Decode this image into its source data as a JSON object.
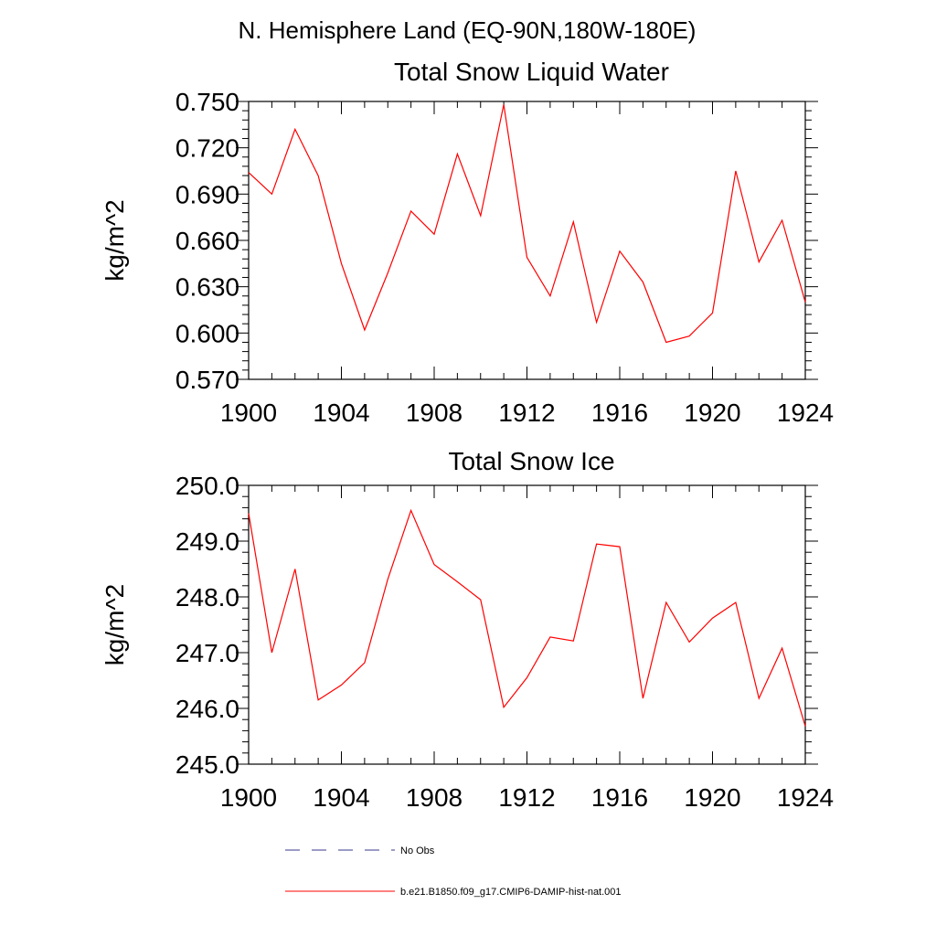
{
  "figure_title": "N. Hemisphere Land (EQ-90N,180W-180E)",
  "colors": {
    "model": "#ff0000",
    "obs": "#3a3a8c",
    "axes": "#000000"
  },
  "legend": {
    "placement": "bottom-center",
    "items": [
      {
        "label": "No Obs",
        "style": "dashed",
        "color": "#3a3a8c"
      },
      {
        "label": "b.e21.B1850.f09_g17.CMIP6-DAMIP-hist-nat.001",
        "style": "solid",
        "color": "#ff0000"
      }
    ]
  },
  "chart_data": [
    {
      "type": "line",
      "title": "Total Snow Liquid Water",
      "ylabel": "kg/m^2",
      "xlabel": "",
      "xlim": [
        1900,
        1924
      ],
      "ylim": [
        0.57,
        0.75
      ],
      "x_ticks": [
        "1900",
        "1904",
        "1908",
        "1912",
        "1916",
        "1920",
        "1924"
      ],
      "x_tick_values": [
        1900,
        1904,
        1908,
        1912,
        1916,
        1920,
        1924
      ],
      "y_ticks": [
        "0.570",
        "0.600",
        "0.630",
        "0.660",
        "0.690",
        "0.720",
        "0.750"
      ],
      "y_tick_values": [
        0.57,
        0.6,
        0.63,
        0.66,
        0.69,
        0.72,
        0.75
      ],
      "grid": false,
      "series": [
        {
          "name": "b.e21.B1850.f09_g17.CMIP6-DAMIP-hist-nat.001",
          "x": [
            1900,
            1901,
            1902,
            1903,
            1904,
            1905,
            1906,
            1907,
            1908,
            1909,
            1910,
            1911,
            1912,
            1913,
            1914,
            1915,
            1916,
            1917,
            1918,
            1919,
            1920,
            1921,
            1922,
            1923,
            1924
          ],
          "y": [
            0.704,
            0.69,
            0.732,
            0.702,
            0.645,
            0.602,
            0.639,
            0.679,
            0.664,
            0.716,
            0.676,
            0.748,
            0.649,
            0.624,
            0.672,
            0.607,
            0.653,
            0.633,
            0.594,
            0.598,
            0.613,
            0.705,
            0.646,
            0.673,
            0.62
          ]
        }
      ]
    },
    {
      "type": "line",
      "title": "Total Snow Ice",
      "ylabel": "kg/m^2",
      "xlabel": "",
      "xlim": [
        1900,
        1924
      ],
      "ylim": [
        245.0,
        250.0
      ],
      "x_ticks": [
        "1900",
        "1904",
        "1908",
        "1912",
        "1916",
        "1920",
        "1924"
      ],
      "x_tick_values": [
        1900,
        1904,
        1908,
        1912,
        1916,
        1920,
        1924
      ],
      "y_ticks": [
        "245.0",
        "246.0",
        "247.0",
        "248.0",
        "249.0",
        "250.0"
      ],
      "y_tick_values": [
        245.0,
        246.0,
        247.0,
        248.0,
        249.0,
        250.0
      ],
      "grid": false,
      "series": [
        {
          "name": "b.e21.B1850.f09_g17.CMIP6-DAMIP-hist-nat.001",
          "x": [
            1900,
            1901,
            1902,
            1903,
            1904,
            1905,
            1906,
            1907,
            1908,
            1909,
            1910,
            1911,
            1912,
            1913,
            1914,
            1915,
            1916,
            1917,
            1918,
            1919,
            1920,
            1921,
            1922,
            1923,
            1924
          ],
          "y": [
            249.5,
            247.0,
            248.5,
            246.15,
            246.42,
            246.82,
            248.32,
            249.55,
            248.58,
            248.27,
            247.95,
            246.02,
            246.55,
            247.28,
            247.21,
            248.95,
            248.9,
            246.18,
            247.9,
            247.19,
            247.62,
            247.9,
            246.18,
            247.08,
            245.68
          ]
        }
      ]
    }
  ]
}
